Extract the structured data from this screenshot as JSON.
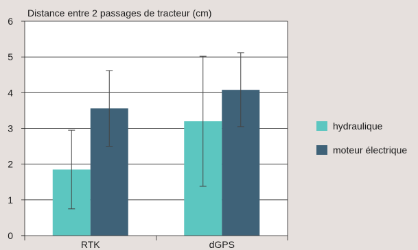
{
  "chart_data": {
    "type": "bar",
    "title": "Distance entre 2 passages de tracteur (cm)",
    "categories": [
      "RTK",
      "dGPS"
    ],
    "series": [
      {
        "name": "hydraulique",
        "color": "#5cc6c0",
        "values": [
          1.85,
          3.2
        ],
        "error_low": [
          0.75,
          1.38
        ],
        "error_high": [
          2.95,
          5.02
        ]
      },
      {
        "name": "moteur électrique",
        "color": "#3f6278",
        "values": [
          3.56,
          4.08
        ],
        "error_low": [
          2.5,
          3.05
        ],
        "error_high": [
          4.62,
          5.12
        ]
      }
    ],
    "ylim": [
      0,
      6
    ],
    "yticks": [
      "0",
      "1",
      "2",
      "3",
      "4",
      "5",
      "6"
    ],
    "grid": true,
    "legend_position": "right"
  }
}
